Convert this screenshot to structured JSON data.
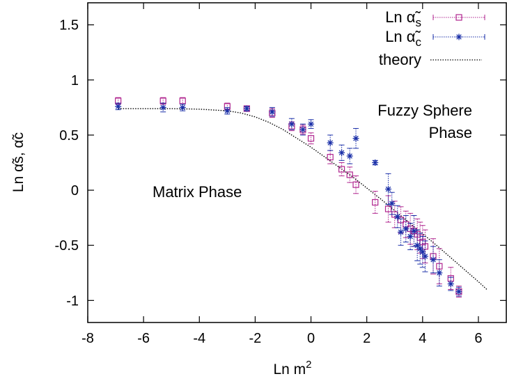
{
  "chart_data": {
    "type": "scatter",
    "xlabel": "Ln m",
    "xlabel_sup": "2",
    "ylabel": "Ln α̃s, α̃c",
    "xlim": [
      -8,
      7
    ],
    "ylim": [
      -1.2,
      1.7
    ],
    "xticks": [
      "-8",
      "-6",
      "-4",
      "-2",
      "0",
      "2",
      "4",
      "6"
    ],
    "yticks": [
      "-1",
      "-0.5",
      "0",
      "0.5",
      "1",
      "1.5"
    ],
    "grid": false,
    "legend_position": "top-right",
    "colors": {
      "s": "#b0258f",
      "c": "#1a2fa8",
      "theory": "#000000"
    },
    "annotations": [
      {
        "text": "Fuzzy Sphere",
        "x": 5.0,
        "y": 0.72
      },
      {
        "text": "Phase",
        "x": 5.0,
        "y": 0.52
      },
      {
        "text": "Matrix Phase",
        "x": -3.6,
        "y": 0.0
      }
    ],
    "series": [
      {
        "name": "Ln α̃s",
        "legend_label": "Ln α̃",
        "legend_sub": "s",
        "marker": "square",
        "x": [
          -6.91,
          -5.3,
          -4.6,
          -3.0,
          -2.3,
          -1.39,
          -0.69,
          -0.29,
          0.0,
          0.69,
          1.1,
          1.39,
          1.61,
          2.3,
          2.77,
          3.0,
          3.22,
          3.4,
          3.56,
          3.69,
          3.81,
          3.91,
          4.0,
          4.09,
          4.38,
          4.6,
          5.01,
          5.3
        ],
        "y": [
          0.81,
          0.81,
          0.81,
          0.76,
          0.74,
          0.7,
          0.58,
          0.55,
          0.47,
          0.3,
          0.19,
          0.14,
          0.05,
          -0.11,
          -0.17,
          -0.22,
          -0.27,
          -0.31,
          -0.35,
          -0.37,
          -0.4,
          -0.43,
          -0.47,
          -0.51,
          -0.6,
          -0.69,
          -0.8,
          -0.92
        ],
        "yerr": [
          0.03,
          0.03,
          0.03,
          0.03,
          0.02,
          0.04,
          0.04,
          0.04,
          0.05,
          0.06,
          0.06,
          0.07,
          0.08,
          0.1,
          0.12,
          0.12,
          0.12,
          0.12,
          0.14,
          0.14,
          0.14,
          0.14,
          0.15,
          0.15,
          0.16,
          0.16,
          0.1,
          0.05
        ]
      },
      {
        "name": "Ln α̃c",
        "legend_label": "Ln α̃",
        "legend_sub": "c",
        "marker": "star",
        "x": [
          -6.91,
          -5.3,
          -4.6,
          -3.0,
          -2.3,
          -1.39,
          -0.69,
          -0.29,
          0.0,
          0.69,
          1.1,
          1.39,
          1.61,
          2.3,
          2.77,
          2.9,
          3.1,
          3.22,
          3.4,
          3.56,
          3.69,
          3.81,
          3.91,
          4.0,
          4.09,
          4.38,
          4.6,
          5.01,
          5.3
        ],
        "y": [
          0.76,
          0.75,
          0.75,
          0.72,
          0.74,
          0.71,
          0.6,
          0.55,
          0.6,
          0.43,
          0.34,
          0.31,
          0.47,
          0.25,
          0.01,
          -0.12,
          -0.24,
          -0.38,
          -0.35,
          -0.42,
          -0.37,
          -0.5,
          -0.53,
          -0.56,
          -0.6,
          -0.63,
          -0.75,
          -0.85,
          -0.92
        ],
        "yerr": [
          0.03,
          0.04,
          0.03,
          0.03,
          0.02,
          0.04,
          0.05,
          0.05,
          0.04,
          0.07,
          0.07,
          0.07,
          0.09,
          0.02,
          0.14,
          0.1,
          0.1,
          0.12,
          0.12,
          0.12,
          0.14,
          0.14,
          0.14,
          0.14,
          0.14,
          0.12,
          0.12,
          0.06,
          0.04
        ]
      },
      {
        "name": "theory",
        "legend_label": "theory",
        "type": "line",
        "style": "dotted",
        "x": [
          -6.91,
          -6.0,
          -5.0,
          -4.0,
          -3.0,
          -2.5,
          -2.0,
          -1.5,
          -1.0,
          -0.5,
          0.0,
          0.5,
          1.0,
          1.5,
          2.0,
          2.5,
          3.0,
          3.5,
          4.0,
          4.5,
          5.0,
          5.5,
          6.0,
          6.3
        ],
        "y": [
          0.74,
          0.74,
          0.74,
          0.735,
          0.72,
          0.7,
          0.665,
          0.615,
          0.55,
          0.47,
          0.39,
          0.3,
          0.21,
          0.12,
          0.02,
          -0.08,
          -0.185,
          -0.29,
          -0.395,
          -0.5,
          -0.61,
          -0.72,
          -0.83,
          -0.9
        ]
      }
    ]
  }
}
